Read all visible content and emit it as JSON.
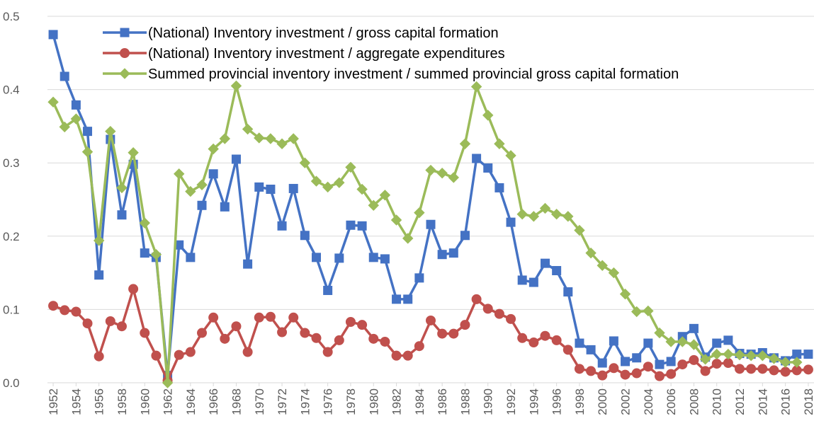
{
  "chart_data": {
    "type": "line",
    "x": [
      1952,
      1953,
      1954,
      1955,
      1956,
      1957,
      1958,
      1959,
      1960,
      1961,
      1962,
      1963,
      1964,
      1965,
      1966,
      1967,
      1968,
      1969,
      1970,
      1971,
      1972,
      1973,
      1974,
      1975,
      1976,
      1977,
      1978,
      1979,
      1980,
      1981,
      1982,
      1983,
      1984,
      1985,
      1986,
      1987,
      1988,
      1989,
      1990,
      1991,
      1992,
      1993,
      1994,
      1995,
      1996,
      1997,
      1998,
      1999,
      2000,
      2001,
      2002,
      2003,
      2004,
      2005,
      2006,
      2007,
      2008,
      2009,
      2010,
      2011,
      2012,
      2013,
      2014,
      2015,
      2016,
      2017,
      2018
    ],
    "xlim": [
      1951.5,
      2018.5
    ],
    "xticks": [
      1952,
      1954,
      1956,
      1958,
      1960,
      1962,
      1964,
      1966,
      1968,
      1970,
      1972,
      1974,
      1976,
      1978,
      1980,
      1982,
      1984,
      1986,
      1988,
      1990,
      1992,
      1994,
      1996,
      1998,
      2000,
      2002,
      2004,
      2006,
      2008,
      2010,
      2012,
      2014,
      2016,
      2018
    ],
    "ylim": [
      0,
      0.5
    ],
    "yticks": [
      {
        "value": 0,
        "label": "0.0"
      },
      0.1,
      0.2,
      0.3,
      0.4,
      0.5
    ],
    "grid": true,
    "legend": "top-left",
    "series": [
      {
        "name": "(National) Inventory investment / gross capital formation",
        "color": "#4472c4",
        "marker": "square",
        "values": [
          0.475,
          0.418,
          0.379,
          0.343,
          0.147,
          0.332,
          0.229,
          0.298,
          0.177,
          0.171,
          0.01,
          0.188,
          0.171,
          0.242,
          0.285,
          0.24,
          0.305,
          0.162,
          0.267,
          0.264,
          0.214,
          0.265,
          0.201,
          0.171,
          0.126,
          0.17,
          0.215,
          0.214,
          0.171,
          0.169,
          0.114,
          0.114,
          0.143,
          0.216,
          0.175,
          0.177,
          0.201,
          0.306,
          0.293,
          0.266,
          0.219,
          0.14,
          0.137,
          0.163,
          0.153,
          0.124,
          0.054,
          0.045,
          0.027,
          0.057,
          0.029,
          0.034,
          0.054,
          0.025,
          0.029,
          0.063,
          0.074,
          0.035,
          0.054,
          0.058,
          0.04,
          0.039,
          0.041,
          0.034,
          0.03,
          0.039,
          0.039
        ]
      },
      {
        "name": "(National) Inventory investment / aggregate expenditures",
        "color": "#c0504d",
        "marker": "circle",
        "values": [
          0.105,
          0.099,
          0.097,
          0.081,
          0.036,
          0.084,
          0.077,
          0.128,
          0.068,
          0.037,
          0.003,
          0.038,
          0.042,
          0.068,
          0.089,
          0.06,
          0.077,
          0.042,
          0.089,
          0.09,
          0.069,
          0.089,
          0.068,
          0.061,
          0.042,
          0.058,
          0.083,
          0.079,
          0.06,
          0.056,
          0.037,
          0.037,
          0.05,
          0.085,
          0.067,
          0.067,
          0.079,
          0.114,
          0.101,
          0.094,
          0.087,
          0.061,
          0.055,
          0.064,
          0.058,
          0.045,
          0.019,
          0.016,
          0.01,
          0.02,
          0.011,
          0.013,
          0.022,
          0.009,
          0.012,
          0.025,
          0.031,
          0.016,
          0.026,
          0.027,
          0.019,
          0.019,
          0.019,
          0.017,
          0.015,
          0.017,
          0.018
        ]
      },
      {
        "name": "Summed provincial inventory investment / summed provincial gross capital formation",
        "color": "#9bbb59",
        "marker": "diamond",
        "values": [
          0.383,
          0.349,
          0.36,
          0.315,
          0.194,
          0.343,
          0.266,
          0.314,
          0.218,
          0.175,
          0,
          0.285,
          0.261,
          0.27,
          0.319,
          0.333,
          0.405,
          0.346,
          0.334,
          0.333,
          0.326,
          0.333,
          0.3,
          0.275,
          0.267,
          0.273,
          0.294,
          0.264,
          0.242,
          0.256,
          0.222,
          0.197,
          0.232,
          0.29,
          0.286,
          0.28,
          0.326,
          0.404,
          0.365,
          0.326,
          0.31,
          0.23,
          0.227,
          0.238,
          0.23,
          0.227,
          0.208,
          0.177,
          0.16,
          0.15,
          0.121,
          0.097,
          0.098,
          0.068,
          0.056,
          0.056,
          0.052,
          0.032,
          0.039,
          0.039,
          0.038,
          0.037,
          0.037,
          0.033,
          0.028,
          0.028,
          null
        ]
      }
    ]
  }
}
